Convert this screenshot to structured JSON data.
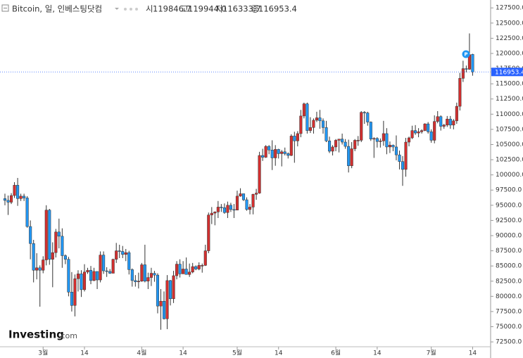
{
  "chart_data": {
    "type": "candlestick",
    "title": "Bitcoin, 일, 인베스팅닷컴",
    "header": [
      {
        "name": "시",
        "value": 119846.7,
        "label": "119846.7"
      },
      {
        "name": "고",
        "value": 119944.0,
        "label": "119944.0"
      },
      {
        "name": "저",
        "value": 116333.7,
        "label": "116333.7"
      },
      {
        "name": "종",
        "value": 116953.4,
        "label": "116953.4"
      }
    ],
    "watermark": [
      "Investing",
      ".com"
    ],
    "up_color": "#d32f2f",
    "down_color": "#2196f3",
    "wick_color": "#333333",
    "grid": false,
    "last_price": {
      "value": 116953.4,
      "label": "116953.4"
    },
    "x": [
      "02-17",
      "02-18",
      "02-19",
      "02-20",
      "02-21",
      "02-22",
      "02-23",
      "02-24",
      "02-25",
      "02-26",
      "02-27",
      "02-28",
      "03-01",
      "03-02",
      "03-03",
      "03-04",
      "03-05",
      "03-06",
      "03-07",
      "03-08",
      "03-09",
      "03-10",
      "03-11",
      "03-12",
      "03-13",
      "03-14",
      "03-15",
      "03-16",
      "03-17",
      "03-18",
      "03-19",
      "03-20",
      "03-21",
      "03-22",
      "03-23",
      "03-24",
      "03-25",
      "03-26",
      "03-27",
      "03-28",
      "03-29",
      "03-30",
      "03-31",
      "04-01",
      "04-02",
      "04-03",
      "04-04",
      "04-05",
      "04-06",
      "04-07",
      "04-08",
      "04-09",
      "04-10",
      "04-11",
      "04-12",
      "04-13",
      "04-14",
      "04-15",
      "04-16",
      "04-17",
      "04-18",
      "04-19",
      "04-20",
      "04-21",
      "04-22",
      "04-23",
      "04-24",
      "04-25",
      "04-26",
      "04-27",
      "04-28",
      "04-29",
      "04-30",
      "05-01",
      "05-02",
      "05-03",
      "05-04",
      "05-05",
      "05-06",
      "05-07",
      "05-08",
      "05-09",
      "05-10",
      "05-11",
      "05-12",
      "05-13",
      "05-14",
      "05-15",
      "05-16",
      "05-17",
      "05-18",
      "05-19",
      "05-20",
      "05-21",
      "05-22",
      "05-23",
      "05-24",
      "05-25",
      "05-26",
      "05-27",
      "05-28",
      "05-29",
      "05-30",
      "05-31",
      "06-01",
      "06-02",
      "06-03",
      "06-04",
      "06-05",
      "06-06",
      "06-07",
      "06-08",
      "06-09",
      "06-10",
      "06-11",
      "06-12",
      "06-13",
      "06-14",
      "06-15",
      "06-16",
      "06-17",
      "06-18",
      "06-19",
      "06-20",
      "06-21",
      "06-22",
      "06-23",
      "06-24",
      "06-25",
      "06-26",
      "06-27",
      "06-28",
      "06-29",
      "06-30",
      "07-01",
      "07-02",
      "07-03",
      "07-04",
      "07-05",
      "07-06",
      "07-07",
      "07-08",
      "07-09",
      "07-10",
      "07-11",
      "07-12",
      "07-13",
      "07-14"
    ],
    "open": [
      96100,
      95800,
      95500,
      96600,
      98300,
      96100,
      96500,
      96200,
      91500,
      88700,
      84300,
      84700,
      84300,
      86000,
      94200,
      86100,
      87200,
      90600,
      89900,
      86700,
      86100,
      80700,
      78500,
      82900,
      83700,
      81100,
      84000,
      84300,
      82600,
      84100,
      82700,
      86800,
      84200,
      84100,
      83800,
      86100,
      87500,
      87400,
      86900,
      87200,
      84400,
      82600,
      82400,
      82500,
      85200,
      82500,
      83100,
      83800,
      83500,
      78400,
      79200,
      76300,
      82600,
      79600,
      83400,
      85300,
      83700,
      84500,
      83600,
      84000,
      84900,
      84500,
      85100,
      85100,
      87500,
      93400,
      93700,
      93900,
      94700,
      94600,
      93800,
      95000,
      94300,
      94200,
      96500,
      96900,
      95900,
      94300,
      94700,
      96800,
      97000,
      103200,
      102900,
      104700,
      104100,
      102800,
      104200,
      103500,
      103800,
      103500,
      103200,
      106400,
      105600,
      106800,
      109700,
      111700,
      107300,
      107800,
      109000,
      109400,
      108900,
      107800,
      105600,
      103900,
      104600,
      105700,
      105900,
      105400,
      104700,
      101500,
      104300,
      105700,
      105700,
      110300,
      110200,
      108700,
      105900,
      106000,
      105500,
      105600,
      106800,
      104600,
      104900,
      104600,
      103300,
      102200,
      100900,
      105400,
      106100,
      107300,
      106900,
      107100,
      107300,
      108400,
      107100,
      105700,
      108800,
      109600,
      108000,
      108200,
      109200,
      108200,
      108900,
      111300,
      115900,
      117500,
      117400,
      119846.7
    ],
    "high": [
      96900,
      96600,
      97000,
      98800,
      99500,
      96900,
      96900,
      96500,
      92500,
      89300,
      87100,
      85100,
      86600,
      95000,
      94400,
      88900,
      91100,
      92800,
      91200,
      86900,
      86500,
      84000,
      83600,
      84300,
      84300,
      85300,
      84700,
      85000,
      84700,
      84100,
      87400,
      87400,
      84800,
      84500,
      86200,
      88800,
      88500,
      88300,
      87800,
      87500,
      84600,
      83500,
      83900,
      85500,
      88500,
      83900,
      84700,
      84200,
      83800,
      81200,
      80800,
      83500,
      82700,
      84200,
      85800,
      86100,
      85800,
      86400,
      85400,
      85500,
      85100,
      85600,
      85400,
      88500,
      93800,
      94700,
      94000,
      95700,
      95200,
      95300,
      95600,
      95400,
      95200,
      97400,
      97800,
      96900,
      96300,
      95200,
      96900,
      97700,
      103800,
      104300,
      104900,
      104900,
      105700,
      104900,
      104300,
      104100,
      104500,
      103700,
      106700,
      107100,
      107200,
      110700,
      111900,
      111900,
      109500,
      109300,
      110400,
      110700,
      109300,
      108900,
      106300,
      104900,
      105900,
      105900,
      106800,
      105900,
      105800,
      105400,
      105900,
      106400,
      110500,
      110500,
      110400,
      108800,
      106200,
      106200,
      106000,
      108900,
      107700,
      105500,
      105000,
      106500,
      104000,
      103100,
      106100,
      106300,
      108100,
      108200,
      107700,
      107500,
      108500,
      108700,
      107500,
      109800,
      110500,
      109800,
      108400,
      109700,
      109700,
      109200,
      111900,
      116800,
      118800,
      118000,
      123300,
      119944.0
    ],
    "low": [
      95000,
      93400,
      95200,
      96200,
      94900,
      95700,
      95700,
      91300,
      86100,
      82300,
      82800,
      78300,
      83800,
      85100,
      85200,
      81500,
      86400,
      87900,
      84700,
      85300,
      80000,
      77500,
      76700,
      80800,
      79900,
      80800,
      83700,
      82000,
      82500,
      81200,
      82300,
      83700,
      83200,
      83700,
      83800,
      85500,
      86300,
      86300,
      85800,
      83600,
      81600,
      81600,
      81300,
      82400,
      82300,
      81200,
      81700,
      82400,
      77200,
      74500,
      76200,
      74600,
      78500,
      78900,
      82800,
      83100,
      83700,
      83600,
      83200,
      83800,
      84300,
      84300,
      83900,
      85000,
      87100,
      91900,
      91700,
      92900,
      93900,
      93600,
      92900,
      93900,
      92900,
      94200,
      96400,
      95700,
      94100,
      93500,
      93500,
      95900,
      96900,
      102300,
      102800,
      103400,
      100800,
      101500,
      102700,
      101400,
      103200,
      102700,
      103100,
      102000,
      104700,
      106200,
      109300,
      106800,
      106900,
      106800,
      108700,
      107600,
      106800,
      105400,
      103600,
      103200,
      103900,
      103700,
      105000,
      104300,
      100400,
      101100,
      103900,
      104800,
      105400,
      108400,
      108100,
      105600,
      102800,
      104500,
      104500,
      104800,
      103400,
      103600,
      103900,
      102400,
      100900,
      98200,
      99700,
      104700,
      105900,
      106600,
      106200,
      106800,
      107200,
      106800,
      105300,
      105200,
      108500,
      107300,
      107600,
      107900,
      107600,
      107500,
      108400,
      110600,
      115300,
      116900,
      117300,
      116333.7
    ],
    "close": [
      95800,
      95500,
      96600,
      98300,
      96100,
      96500,
      96200,
      91500,
      88700,
      84300,
      84700,
      84300,
      86000,
      94200,
      86100,
      87200,
      90600,
      89900,
      86700,
      86100,
      80700,
      78500,
      82900,
      83700,
      81100,
      84000,
      84300,
      82600,
      84100,
      82700,
      86800,
      84200,
      84100,
      83800,
      86100,
      87500,
      87400,
      86900,
      87200,
      84400,
      82600,
      82400,
      82500,
      85200,
      82500,
      83100,
      83800,
      83500,
      78400,
      79200,
      76300,
      82600,
      79600,
      83400,
      85300,
      83700,
      84500,
      83600,
      84000,
      84900,
      84500,
      85100,
      85100,
      87500,
      93400,
      93700,
      93900,
      94700,
      94600,
      93800,
      95000,
      94300,
      94200,
      96500,
      96900,
      95900,
      94300,
      94700,
      96800,
      97000,
      103200,
      102900,
      104700,
      104100,
      102800,
      104200,
      103500,
      103800,
      103500,
      103200,
      106400,
      105600,
      106800,
      109700,
      111700,
      107300,
      107800,
      109000,
      109400,
      108900,
      107800,
      105600,
      103900,
      104600,
      105700,
      105900,
      105400,
      104700,
      101500,
      104300,
      105700,
      105700,
      110300,
      110200,
      108700,
      105900,
      106000,
      105500,
      105600,
      106800,
      104600,
      104900,
      104600,
      103300,
      102200,
      100900,
      105400,
      106100,
      107300,
      106900,
      107100,
      107300,
      108400,
      107100,
      105700,
      108800,
      109600,
      108000,
      108200,
      109200,
      108200,
      108900,
      111300,
      115900,
      117500,
      117400,
      119800,
      116953.4
    ],
    "xticks": [
      {
        "value": "03-01",
        "label": "3월"
      },
      {
        "value": "03-14",
        "label": "14"
      },
      {
        "value": "04-01",
        "label": "4월"
      },
      {
        "value": "04-14",
        "label": "14"
      },
      {
        "value": "05-01",
        "label": "5월"
      },
      {
        "value": "05-14",
        "label": "14"
      },
      {
        "value": "06-01",
        "label": "6월"
      },
      {
        "value": "06-14",
        "label": "14"
      },
      {
        "value": "07-01",
        "label": "7월"
      },
      {
        "value": "07-14",
        "label": "14"
      }
    ],
    "ylim": [
      71700,
      128800
    ],
    "yticks": [
      {
        "value": 72500,
        "label": "72500.0"
      },
      {
        "value": 75000,
        "label": "75000.0"
      },
      {
        "value": 77500,
        "label": "77500.0"
      },
      {
        "value": 80000,
        "label": "80000.0"
      },
      {
        "value": 82500,
        "label": "82500.0"
      },
      {
        "value": 85000,
        "label": "85000.0"
      },
      {
        "value": 87500,
        "label": "87500.0"
      },
      {
        "value": 90000,
        "label": "90000.0"
      },
      {
        "value": 92500,
        "label": "92500.0"
      },
      {
        "value": 95000,
        "label": "95000.0"
      },
      {
        "value": 97500,
        "label": "97500.0"
      },
      {
        "value": 100000,
        "label": "100000.0"
      },
      {
        "value": 102500,
        "label": "102500.0"
      },
      {
        "value": 105000,
        "label": "105000.0"
      },
      {
        "value": 107500,
        "label": "107500.0"
      },
      {
        "value": 110000,
        "label": "110000.0"
      },
      {
        "value": 112500,
        "label": "112500.0"
      },
      {
        "value": 115000,
        "label": "115000.0"
      },
      {
        "value": 117500,
        "label": "117500.0"
      },
      {
        "value": 120000,
        "label": "120000.0"
      },
      {
        "value": 122500,
        "label": "122500.0"
      },
      {
        "value": 125000,
        "label": "125000.0"
      },
      {
        "value": 127500,
        "label": "127500.0"
      }
    ]
  }
}
